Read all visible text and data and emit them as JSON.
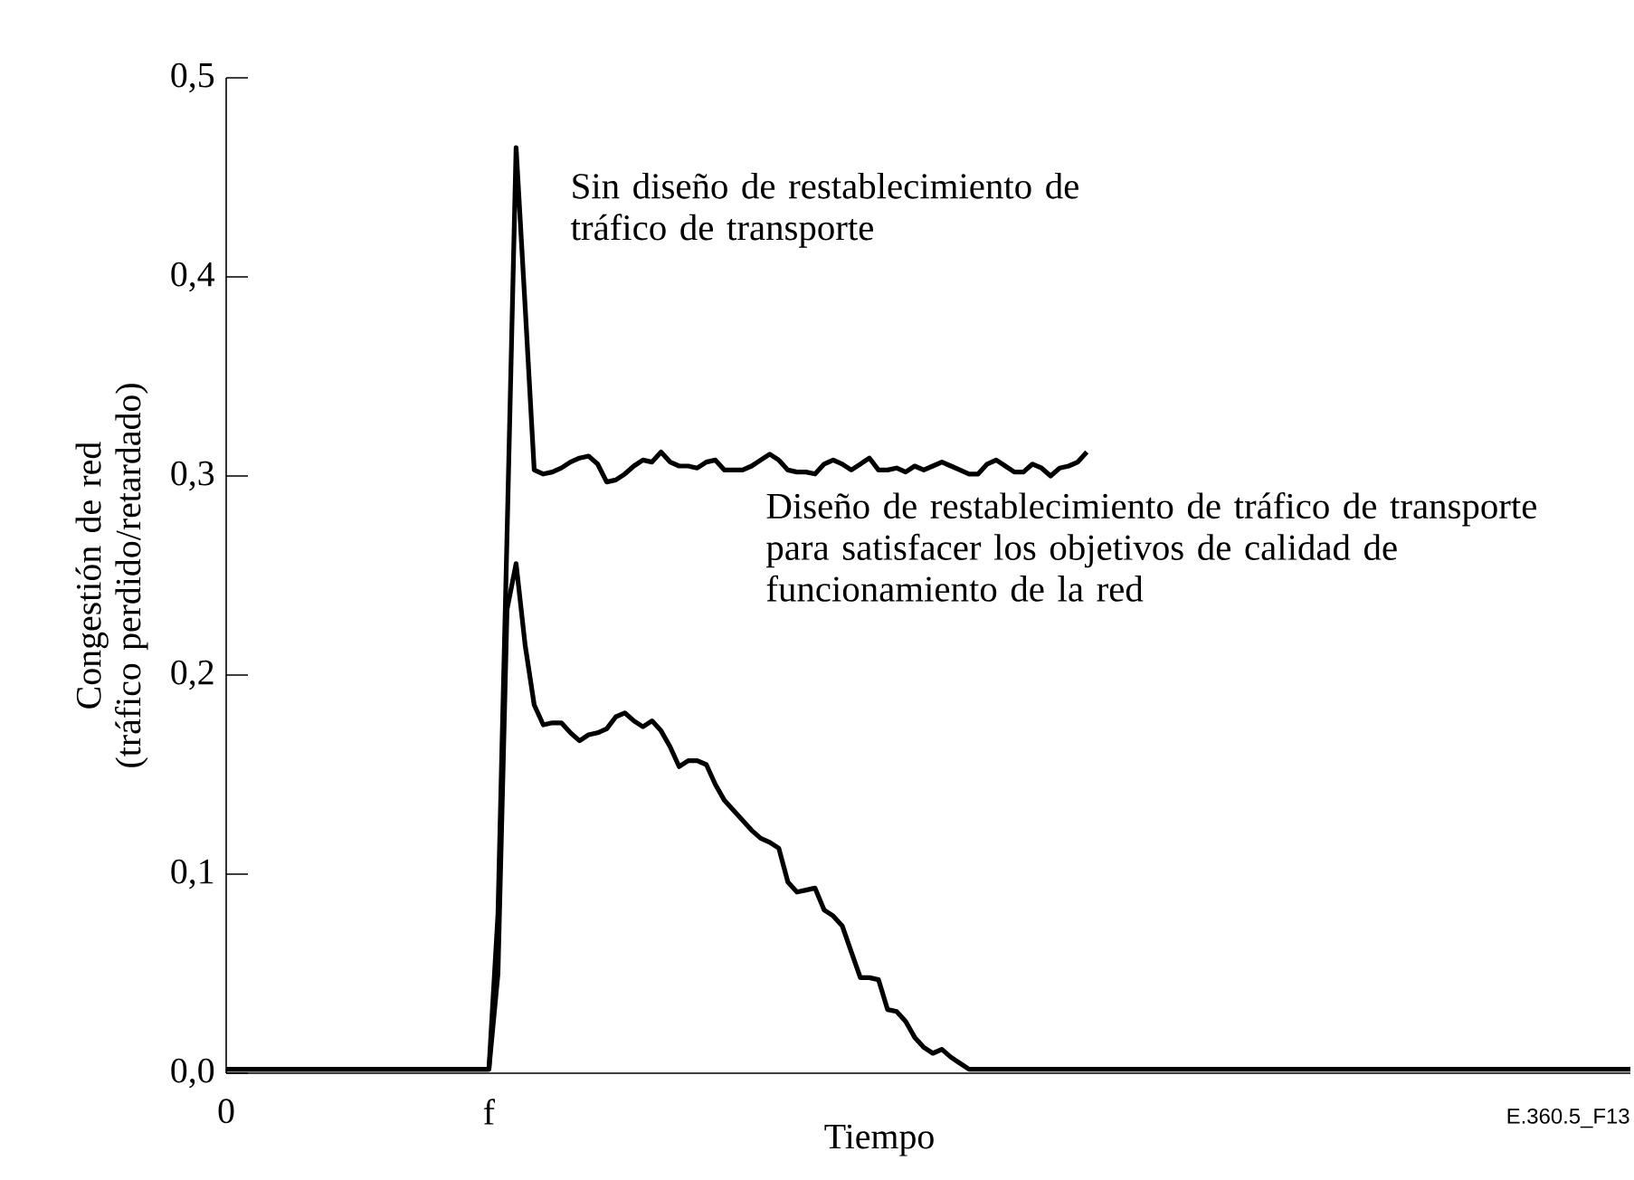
{
  "chart_data": {
    "type": "line",
    "xlabel": "Tiempo",
    "ylabel": "Congestión de red\n(tráfico perdido/retardado)",
    "categories": [
      "0",
      null,
      null,
      null,
      null,
      null,
      null,
      null,
      null,
      null,
      null,
      null,
      null,
      null,
      null,
      null,
      null,
      null,
      null,
      null,
      null,
      null,
      null,
      null,
      null,
      null,
      null,
      null,
      null,
      "f",
      null,
      null,
      null,
      null,
      null,
      null,
      null,
      null,
      null,
      null,
      null,
      null,
      null,
      null,
      null,
      null,
      null,
      null,
      null,
      null,
      null,
      null,
      null,
      null,
      null,
      null,
      null,
      null,
      null,
      null,
      null,
      null,
      null,
      null,
      null,
      null,
      null,
      null,
      null,
      null,
      null,
      null,
      null,
      null,
      null,
      null,
      null,
      null,
      null,
      null,
      null,
      null,
      null,
      null,
      null,
      null,
      null,
      null,
      null,
      null,
      null,
      null,
      null,
      null,
      null,
      null,
      null,
      null,
      null,
      null,
      null,
      null,
      null,
      null,
      null,
      null,
      null,
      null,
      null,
      null,
      null,
      null,
      null,
      null,
      null,
      null,
      null,
      null,
      null,
      null,
      null,
      null,
      null,
      null,
      null,
      null,
      null,
      null,
      null,
      null,
      null,
      null,
      null,
      null,
      null,
      null,
      null,
      null,
      null,
      null,
      null,
      null,
      null,
      null,
      null,
      null,
      null,
      null,
      null,
      null,
      null,
      null,
      null,
      null,
      null,
      null
    ],
    "ylim": [
      0,
      0.5
    ],
    "yticks": [
      {
        "value": 0,
        "label": "0,0"
      },
      {
        "value": 0.1,
        "label": "0,1"
      },
      {
        "value": 0.2,
        "label": "0,2"
      },
      {
        "value": 0.3,
        "label": "0,3"
      },
      {
        "value": 0.4,
        "label": "0,4"
      },
      {
        "value": 0.5,
        "label": "0,5"
      }
    ],
    "grid": false,
    "marker": "none",
    "line_style": "solid",
    "series": [
      {
        "color": "#000000",
        "values": [
          0.002,
          0.002,
          0.002,
          0.002,
          0.002,
          0.002,
          0.002,
          0.002,
          0.002,
          0.002,
          0.002,
          0.002,
          0.002,
          0.002,
          0.002,
          0.002,
          0.002,
          0.002,
          0.002,
          0.002,
          0.002,
          0.002,
          0.002,
          0.002,
          0.002,
          0.002,
          0.002,
          0.002,
          0.002,
          0.002,
          0.08,
          0.27,
          0.465,
          0.385,
          0.303,
          0.301,
          0.302,
          0.304,
          0.307,
          0.309,
          0.31,
          0.306,
          0.297,
          0.298,
          0.301,
          0.305,
          0.308,
          0.307,
          0.312,
          0.307,
          0.305,
          0.305,
          0.304,
          0.307,
          0.308,
          0.303,
          0.303,
          0.303,
          0.305,
          0.308,
          0.311,
          0.308,
          0.303,
          0.302,
          0.302,
          0.301,
          0.306,
          0.308,
          0.306,
          0.303,
          0.306,
          0.309,
          0.303,
          0.303,
          0.304,
          0.302,
          0.305,
          0.303,
          0.305,
          0.307,
          0.305,
          0.303,
          0.301,
          0.301,
          0.306,
          0.308,
          0.305,
          0.302,
          0.302,
          0.306,
          0.304,
          0.3,
          0.304,
          0.305,
          0.307,
          0.312,
          null,
          null,
          null,
          null,
          null,
          null,
          null,
          null,
          null,
          null,
          null,
          null,
          null,
          null,
          null,
          null,
          null,
          null,
          null,
          null,
          null,
          null,
          null,
          null,
          null,
          null,
          null,
          null,
          null,
          null,
          null,
          null,
          null,
          null,
          null,
          null,
          null,
          null,
          null,
          null,
          null,
          null,
          null,
          null,
          null,
          null,
          null,
          null,
          null,
          null,
          null,
          null,
          null,
          null,
          null,
          null,
          null,
          null,
          null,
          null
        ]
      },
      {
        "color": "#000000",
        "values": [
          0.002,
          0.002,
          0.002,
          0.002,
          0.002,
          0.002,
          0.002,
          0.002,
          0.002,
          0.002,
          0.002,
          0.002,
          0.002,
          0.002,
          0.002,
          0.002,
          0.002,
          0.002,
          0.002,
          0.002,
          0.002,
          0.002,
          0.002,
          0.002,
          0.002,
          0.002,
          0.002,
          0.002,
          0.002,
          0.002,
          0.05,
          0.233,
          0.256,
          0.215,
          0.185,
          0.175,
          0.176,
          0.176,
          0.171,
          0.167,
          0.17,
          0.171,
          0.173,
          0.179,
          0.181,
          0.177,
          0.174,
          0.177,
          0.172,
          0.164,
          0.154,
          0.157,
          0.157,
          0.155,
          0.145,
          0.137,
          0.132,
          0.127,
          0.122,
          0.118,
          0.116,
          0.113,
          0.096,
          0.091,
          0.092,
          0.093,
          0.082,
          0.079,
          0.074,
          0.061,
          0.048,
          0.048,
          0.047,
          0.032,
          0.031,
          0.026,
          0.018,
          0.013,
          0.01,
          0.012,
          0.008,
          0.005,
          0.002,
          0.002,
          0.002,
          0.002,
          0.002,
          0.002,
          0.002,
          0.002,
          0.002,
          0.002,
          0.002,
          0.002,
          0.002,
          0.002,
          0.002,
          0.002,
          0.002,
          0.002,
          0.002,
          0.002,
          0.002,
          0.002,
          0.002,
          0.002,
          0.002,
          0.002,
          0.002,
          0.002,
          0.002,
          0.002,
          0.002,
          0.002,
          0.002,
          0.002,
          0.002,
          0.002,
          0.002,
          0.002,
          0.002,
          0.002,
          0.002,
          0.002,
          0.002,
          0.002,
          0.002,
          0.002,
          0.002,
          0.002,
          0.002,
          0.002,
          0.002,
          0.002,
          0.002,
          0.002,
          0.002,
          0.002,
          0.002,
          0.002,
          0.002,
          0.002,
          0.002,
          0.002,
          0.002,
          0.002,
          0.002,
          0.002,
          0.002,
          0.002,
          0.002,
          0.002,
          0.002,
          0.002,
          0.002,
          0.002
        ]
      }
    ],
    "annotations": [
      "Sin diseño de restablecimiento de tráfico de transporte",
      "Diseño de restablecimiento de tráfico de transporte para satisfacer los objetivos de calidad de funcionamiento de la red",
      "E.360.5_F13"
    ]
  }
}
